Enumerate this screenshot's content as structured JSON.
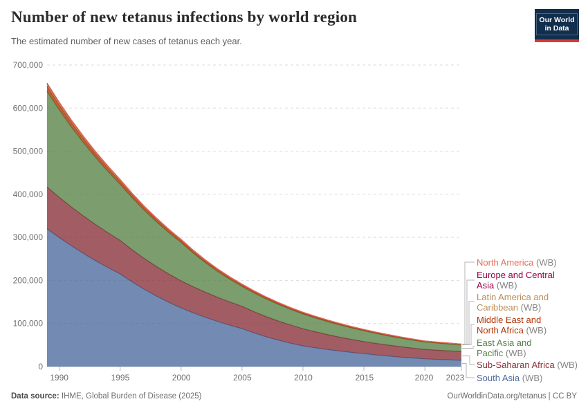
{
  "logo": {
    "line1": "Our World",
    "line2": "in Data",
    "bg_color": "#122e4d",
    "accent_color": "#d93a33"
  },
  "footer": {
    "source_label": "Data source:",
    "source_text": "IHME, Global Burden of Disease (2025)",
    "right_text": "OurWorldinData.org/tetanus | CC BY"
  },
  "chart_data": {
    "type": "area",
    "stacked": true,
    "title": "Number of new tetanus infections by world region",
    "subtitle": "The estimated number of new cases of tetanus each year.",
    "grid": "horizontal-dashed",
    "legend_position": "right",
    "ylim": [
      0,
      700000
    ],
    "yticks": {
      "values": [
        0,
        100000,
        200000,
        300000,
        400000,
        500000,
        600000,
        700000
      ],
      "labels": [
        "0",
        "100,000",
        "200,000",
        "300,000",
        "400,000",
        "500,000",
        "600,000",
        "700,000"
      ]
    },
    "xticks": {
      "values": [
        1990,
        1995,
        2000,
        2005,
        2010,
        2015,
        2020,
        2023
      ],
      "labels": [
        "1990",
        "1995",
        "2000",
        "2005",
        "2010",
        "2015",
        "2020",
        "2023"
      ]
    },
    "x": [
      1989,
      1990,
      1991,
      1992,
      1993,
      1994,
      1995,
      1996,
      1997,
      1998,
      1999,
      2000,
      2001,
      2002,
      2003,
      2004,
      2005,
      2006,
      2007,
      2008,
      2009,
      2010,
      2011,
      2012,
      2013,
      2014,
      2015,
      2016,
      2017,
      2018,
      2019,
      2020,
      2021,
      2022,
      2023
    ],
    "series": [
      {
        "name": "South Asia",
        "suffix": "(WB)",
        "color": "#4C6A9C",
        "values": [
          320000,
          299500,
          280300,
          262300,
          245500,
          229800,
          215000,
          196200,
          179000,
          163300,
          149000,
          136000,
          124700,
          114300,
          104700,
          96000,
          88000,
          78000,
          69000,
          61200,
          54200,
          48000,
          43700,
          39800,
          36200,
          32900,
          30000,
          27100,
          24500,
          22100,
          19900,
          18000,
          16700,
          15600,
          14500
        ]
      },
      {
        "name": "Sub-Saharan Africa",
        "suffix": "(WB)",
        "color": "#883039",
        "values": [
          97000,
          93500,
          90200,
          87000,
          83900,
          80900,
          78000,
          74700,
          71600,
          68600,
          65700,
          63000,
          60600,
          58300,
          56100,
          54000,
          52000,
          49300,
          46800,
          44400,
          42200,
          40000,
          37200,
          34700,
          32300,
          30100,
          28000,
          26700,
          25400,
          24200,
          23100,
          22000,
          21500,
          21000,
          20500
        ]
      },
      {
        "name": "East Asia and Pacific",
        "suffix": "(WB)",
        "color": "#578145",
        "values": [
          222000,
          203100,
          185700,
          169900,
          155400,
          142200,
          130000,
          120500,
          111700,
          103600,
          96000,
          89000,
          78000,
          68400,
          59900,
          52500,
          46000,
          43300,
          40800,
          38400,
          36100,
          34000,
          32000,
          30100,
          28300,
          26600,
          25000,
          23100,
          21400,
          19800,
          18400,
          17000,
          16300,
          15600,
          15000
        ]
      },
      {
        "name": "Middle East and North Africa",
        "suffix": "(WB)",
        "color": "#B13507",
        "values": [
          12000,
          11000,
          10000,
          9200,
          8400,
          7700,
          7000,
          6400,
          5900,
          5400,
          4900,
          4500,
          4300,
          4100,
          3900,
          3700,
          3500,
          3350,
          3200,
          3050,
          2900,
          2800,
          2670,
          2540,
          2420,
          2310,
          2200,
          2110,
          2030,
          1950,
          1870,
          1800,
          1730,
          1660,
          1600
        ]
      },
      {
        "name": "Latin America and Caribbean",
        "suffix": "(WB)",
        "color": "#BC8E5A",
        "values": [
          4500,
          4160,
          3840,
          3550,
          3280,
          3030,
          2800,
          2560,
          2350,
          2150,
          1970,
          1800,
          1660,
          1530,
          1410,
          1300,
          1200,
          1110,
          1020,
          940,
          870,
          800,
          760,
          710,
          670,
          640,
          600,
          550,
          510,
          470,
          430,
          400,
          380,
          370,
          350
        ]
      },
      {
        "name": "Europe and Central Asia",
        "suffix": "(WB)",
        "color": "#970046",
        "values": [
          2500,
          2300,
          2110,
          1940,
          1780,
          1630,
          1500,
          1350,
          1220,
          1100,
          1000,
          900,
          830,
          770,
          710,
          650,
          600,
          570,
          540,
          510,
          480,
          450,
          430,
          410,
          390,
          370,
          350,
          340,
          330,
          320,
          310,
          300,
          290,
          280,
          270
        ]
      },
      {
        "name": "North America",
        "suffix": "(WB)",
        "color": "#E56E5A",
        "values": [
          120,
          115,
          110,
          105,
          100,
          96,
          90,
          86,
          82,
          78,
          75,
          70,
          68,
          65,
          63,
          60,
          58,
          56,
          55,
          53,
          50,
          49,
          48,
          47,
          46,
          45,
          44,
          44,
          43,
          42,
          41,
          40,
          40,
          40,
          40
        ]
      }
    ]
  }
}
